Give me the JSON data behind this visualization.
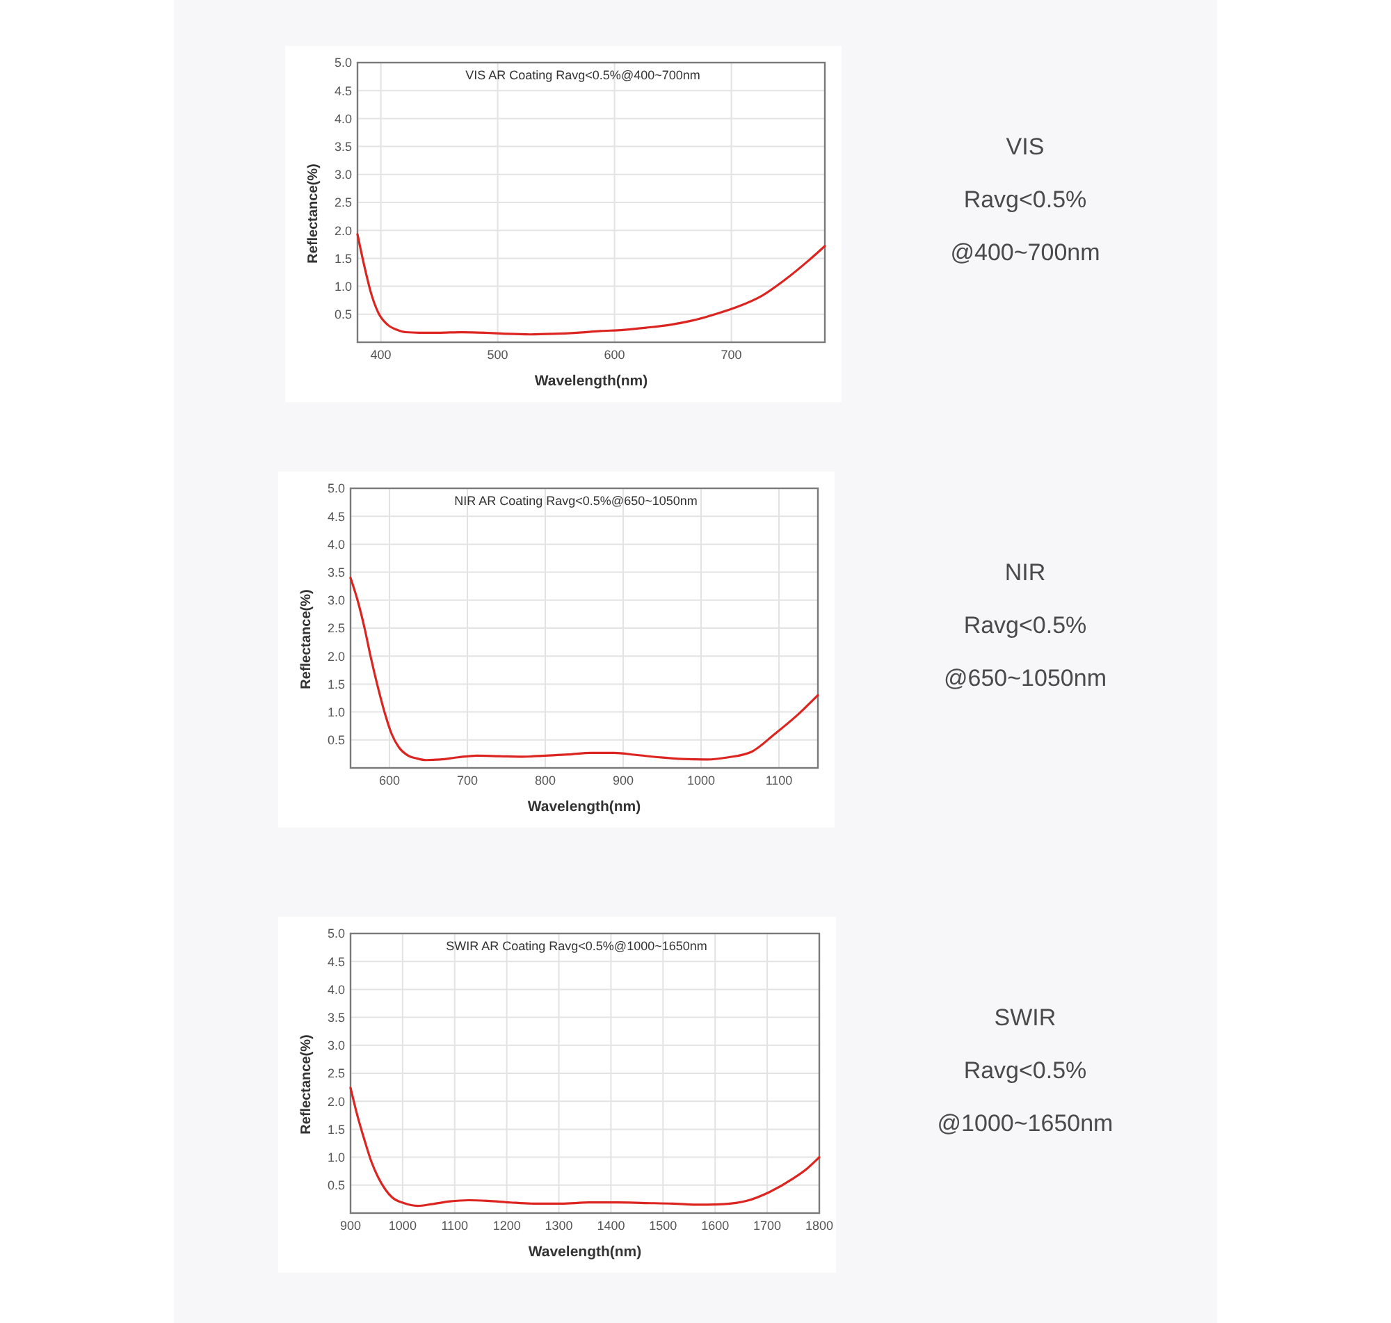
{
  "chart_data": [
    {
      "type": "line",
      "title": "VIS AR Coating Ravg<0.5%@400~700nm",
      "xlabel": "Wavelength(nm)",
      "ylabel": "Reflectance(%)",
      "xlim": [
        380,
        780
      ],
      "ylim": [
        0,
        5
      ],
      "xticks": [
        400,
        500,
        600,
        700
      ],
      "yticks": [
        0.5,
        {
          "value": 1,
          "label": "1.0"
        },
        1.5,
        {
          "value": 2,
          "label": "2.0"
        },
        2.5,
        {
          "value": 3,
          "label": "3.0"
        },
        3.5,
        {
          "value": 4,
          "label": "4.0"
        },
        4.5,
        {
          "value": 5,
          "label": "5.0"
        }
      ],
      "grid": true,
      "line_style": "solid",
      "series": [
        {
          "color": "#dc2520",
          "x": [
            380,
            386,
            392,
            398,
            406,
            414,
            421,
            433,
            449,
            469,
            489,
            508,
            528,
            548,
            568,
            588,
            607,
            627,
            647,
            667,
            686,
            706,
            726,
            746,
            766,
            780
          ],
          "values": [
            1.93,
            1.35,
            0.85,
            0.52,
            0.31,
            0.22,
            0.18,
            0.17,
            0.17,
            0.18,
            0.17,
            0.15,
            0.14,
            0.15,
            0.17,
            0.2,
            0.22,
            0.26,
            0.31,
            0.39,
            0.5,
            0.64,
            0.83,
            1.12,
            1.46,
            1.72
          ]
        }
      ]
    },
    {
      "type": "other",
      "title": "VIS",
      "annotations": [
        "Ravg<0.5%",
        "@400~700nm"
      ]
    },
    {
      "type": "line",
      "title": "NIR AR Coating Ravg<0.5%@650~1050nm",
      "xlabel": "Wavelength(nm)",
      "ylabel": "Reflectance(%)",
      "xlim": [
        550,
        1150
      ],
      "ylim": [
        0,
        5
      ],
      "xticks": [
        600,
        700,
        800,
        900,
        1000,
        1100
      ],
      "yticks": [
        0.5,
        {
          "value": 1,
          "label": "1.0"
        },
        1.5,
        {
          "value": 2,
          "label": "2.0"
        },
        2.5,
        {
          "value": 3,
          "label": "3.0"
        },
        3.5,
        {
          "value": 4,
          "label": "4.0"
        },
        4.5,
        {
          "value": 5,
          "label": "5.0"
        }
      ],
      "grid": true,
      "line_style": "solid",
      "series": [
        {
          "color": "#dc2520",
          "x": [
            550,
            559,
            568,
            576,
            585,
            594,
            603,
            612,
            624,
            635,
            647,
            665,
            688,
            712,
            741,
            771,
            800,
            829,
            859,
            888,
            918,
            947,
            976,
            1006,
            1035,
            1065,
            1094,
            1124,
            1150
          ],
          "values": [
            3.4,
            3.0,
            2.5,
            1.98,
            1.45,
            0.98,
            0.6,
            0.37,
            0.22,
            0.17,
            0.14,
            0.15,
            0.19,
            0.22,
            0.21,
            0.2,
            0.22,
            0.24,
            0.27,
            0.27,
            0.23,
            0.19,
            0.16,
            0.15,
            0.19,
            0.29,
            0.6,
            0.95,
            1.3
          ]
        }
      ]
    },
    {
      "type": "other",
      "title": "NIR",
      "annotations": [
        "Ravg<0.5%",
        "@650~1050nm"
      ]
    },
    {
      "type": "line",
      "title": "SWIR AR Coating Ravg<0.5%@1000~1650nm",
      "xlabel": "Wavelength(nm)",
      "ylabel": "Reflectance(%)",
      "xlim": [
        900,
        1800
      ],
      "ylim": [
        0,
        5
      ],
      "xticks": [
        900,
        1000,
        1100,
        1200,
        1300,
        1400,
        1500,
        1600,
        1700,
        1800
      ],
      "yticks": [
        0.5,
        {
          "value": 1,
          "label": "1.0"
        },
        1.5,
        {
          "value": 2,
          "label": "2.0"
        },
        2.5,
        {
          "value": 3,
          "label": "3.0"
        },
        3.5,
        {
          "value": 4,
          "label": "4.0"
        },
        4.5,
        {
          "value": 5,
          "label": "5.0"
        }
      ],
      "grid": true,
      "line_style": "solid",
      "series": [
        {
          "color": "#dc2520",
          "x": [
            900,
            913,
            927,
            940,
            953,
            967,
            980,
            1002,
            1029,
            1056,
            1091,
            1127,
            1162,
            1207,
            1251,
            1305,
            1358,
            1412,
            1465,
            1518,
            1572,
            1616,
            1661,
            1705,
            1750,
            1777,
            1800
          ],
          "values": [
            2.24,
            1.75,
            1.3,
            0.92,
            0.64,
            0.42,
            0.28,
            0.18,
            0.13,
            0.16,
            0.21,
            0.23,
            0.22,
            0.19,
            0.17,
            0.17,
            0.19,
            0.19,
            0.18,
            0.17,
            0.15,
            0.16,
            0.22,
            0.38,
            0.62,
            0.8,
            1.0
          ]
        }
      ]
    },
    {
      "type": "other",
      "title": "SWIR",
      "annotations": [
        "Ravg<0.5%",
        "@1000~1650nm"
      ]
    }
  ]
}
